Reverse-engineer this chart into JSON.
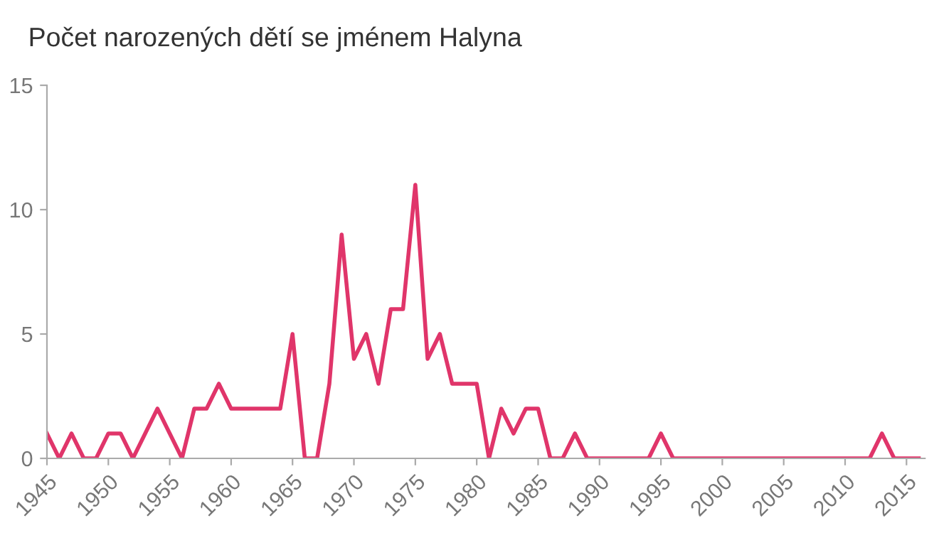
{
  "chart_data": {
    "type": "line",
    "title": "Počet narozených dětí se jménem Halyna",
    "x": [
      1945,
      1946,
      1947,
      1948,
      1949,
      1950,
      1951,
      1952,
      1953,
      1954,
      1955,
      1956,
      1957,
      1958,
      1959,
      1960,
      1961,
      1962,
      1963,
      1964,
      1965,
      1966,
      1967,
      1968,
      1969,
      1970,
      1971,
      1972,
      1973,
      1974,
      1975,
      1976,
      1977,
      1978,
      1979,
      1980,
      1981,
      1982,
      1983,
      1984,
      1985,
      1986,
      1987,
      1988,
      1989,
      1990,
      1991,
      1992,
      1993,
      1994,
      1995,
      1996,
      1997,
      1998,
      1999,
      2000,
      2001,
      2002,
      2003,
      2004,
      2005,
      2006,
      2007,
      2008,
      2009,
      2010,
      2011,
      2012,
      2013,
      2014,
      2015,
      2016
    ],
    "series": [
      {
        "color": "#e0356a",
        "values": [
          1,
          0,
          1,
          0,
          0,
          1,
          1,
          0,
          1,
          2,
          1,
          0,
          2,
          2,
          3,
          2,
          2,
          2,
          2,
          2,
          5,
          0,
          0,
          3,
          9,
          4,
          5,
          3,
          6,
          6,
          11,
          4,
          5,
          3,
          3,
          3,
          0,
          2,
          1,
          2,
          2,
          0,
          0,
          1,
          0,
          0,
          0,
          0,
          0,
          0,
          1,
          0,
          0,
          0,
          0,
          0,
          0,
          0,
          0,
          0,
          0,
          0,
          0,
          0,
          0,
          0,
          0,
          0,
          1,
          0,
          0,
          0
        ]
      }
    ],
    "xlim": [
      1945,
      2016.5
    ],
    "xticks": [
      1945,
      1950,
      1955,
      1960,
      1965,
      1970,
      1975,
      1980,
      1985,
      1990,
      1995,
      2000,
      2005,
      2010,
      2015
    ],
    "ylim": [
      0,
      15
    ],
    "yticks": [
      0,
      5,
      10,
      15
    ],
    "grid": false,
    "legend": false,
    "marker": "none",
    "line_style": "solid"
  }
}
